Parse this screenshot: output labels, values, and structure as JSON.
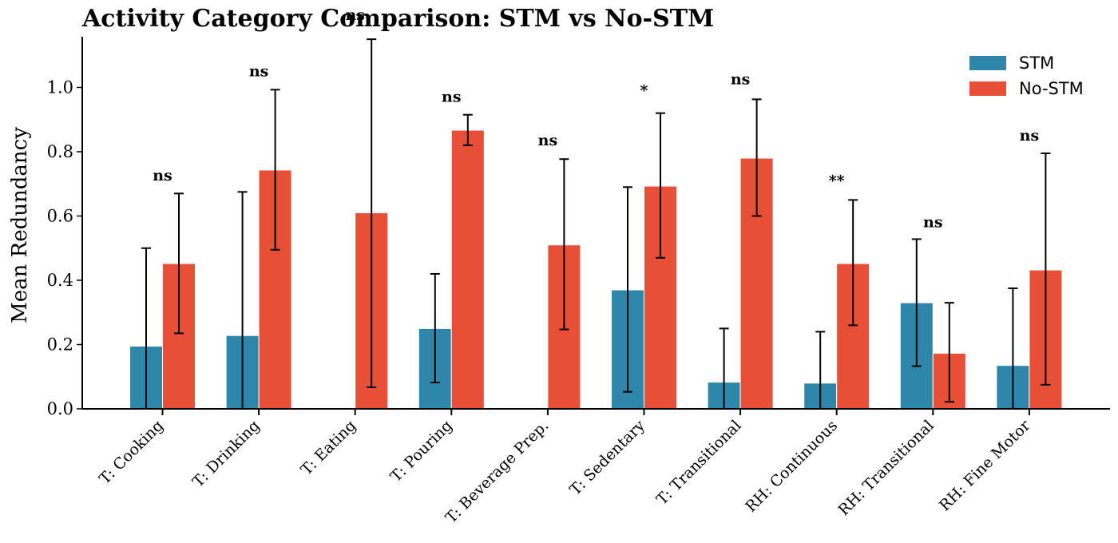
{
  "chart_data": {
    "type": "bar",
    "title": "Activity Category Comparison: STM vs No-STM",
    "xlabel": "",
    "ylabel": "Mean Redundancy",
    "ylim": [
      0,
      1.15
    ],
    "yticks": [
      "0.0",
      "0.2",
      "0.4",
      "0.6",
      "0.8",
      "1.0"
    ],
    "categories": [
      "T: Cooking",
      "T: Drinking",
      "T: Eating",
      "T: Pouring",
      "T: Beverage Prep.",
      "T: Sedentary",
      "T: Transitional",
      "RH: Continuous",
      "RH: Transitional",
      "RH: Fine Motor"
    ],
    "series": [
      {
        "name": "STM",
        "color": "#2e86ab",
        "values": [
          0.195,
          0.228,
          0.0,
          0.25,
          0.0,
          0.37,
          0.083,
          0.08,
          0.33,
          0.135
        ],
        "err_low": [
          0.0,
          0.0,
          0.0,
          0.082,
          0.0,
          0.053,
          0.0,
          0.0,
          0.133,
          0.0
        ],
        "err_high": [
          0.5,
          0.675,
          0.0,
          0.42,
          0.0,
          0.69,
          0.25,
          0.24,
          0.528,
          0.375
        ]
      },
      {
        "name": "No-STM",
        "color": "#e84f37",
        "values": [
          0.452,
          0.743,
          0.61,
          0.867,
          0.51,
          0.693,
          0.78,
          0.452,
          0.173,
          0.432
        ],
        "err_low": [
          0.235,
          0.495,
          0.067,
          0.82,
          0.247,
          0.47,
          0.6,
          0.26,
          0.022,
          0.075
        ],
        "err_high": [
          0.67,
          0.993,
          1.15,
          0.915,
          0.777,
          0.92,
          0.963,
          0.65,
          0.33,
          0.795
        ]
      }
    ],
    "significance": [
      "ns",
      "ns",
      "ns",
      "ns",
      "ns",
      "*",
      "ns",
      "**",
      "ns",
      "ns"
    ],
    "sig_y": [
      0.71,
      1.035,
      1.21,
      0.955,
      0.82,
      0.975,
      1.01,
      0.695,
      0.565,
      0.835
    ],
    "grid": false,
    "legend_position": "top-right"
  }
}
